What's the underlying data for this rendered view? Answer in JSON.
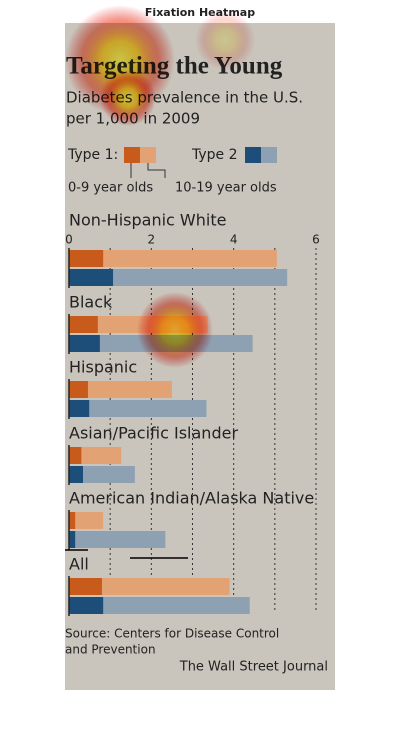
{
  "figure_title": "Fixation Heatmap",
  "chart_data": {
    "type": "bar",
    "orientation": "horizontal",
    "title": "Targeting the Young",
    "subtitle": [
      "Diabetes prevalence in the U.S.",
      "per 1,000 in 2009"
    ],
    "legend": {
      "types": [
        "Type 1:",
        "Type 2"
      ],
      "ages": [
        "0-9 year olds",
        "10-19 year olds"
      ]
    },
    "categories": [
      "Non-Hispanic White",
      "Black",
      "Hispanic",
      "Asian/Pacific Islander",
      "American Indian/Alaska Native",
      "All"
    ],
    "series": [
      {
        "color": "#e2a274",
        "values": [
          5.05,
          3.37,
          2.5,
          1.27,
          0.83,
          3.9
        ]
      },
      {
        "color": "#c85a1c",
        "values": [
          0.83,
          0.7,
          0.46,
          0.3,
          0.15,
          0.8
        ]
      },
      {
        "color": "#8ea1b3",
        "values": [
          5.3,
          4.46,
          3.34,
          1.6,
          2.34,
          4.39
        ]
      },
      {
        "color": "#1c4e79",
        "values": [
          1.07,
          0.75,
          0.49,
          0.34,
          0.15,
          0.83
        ]
      }
    ],
    "xlim": [
      0,
      6
    ],
    "xticks": [
      0,
      2,
      4,
      6
    ],
    "grid_minor": [
      1,
      3,
      5
    ],
    "grid": true,
    "source": [
      "Source: Centers for Disease Control",
      "and Prevention"
    ],
    "credit": "The Wall Street Journal"
  }
}
